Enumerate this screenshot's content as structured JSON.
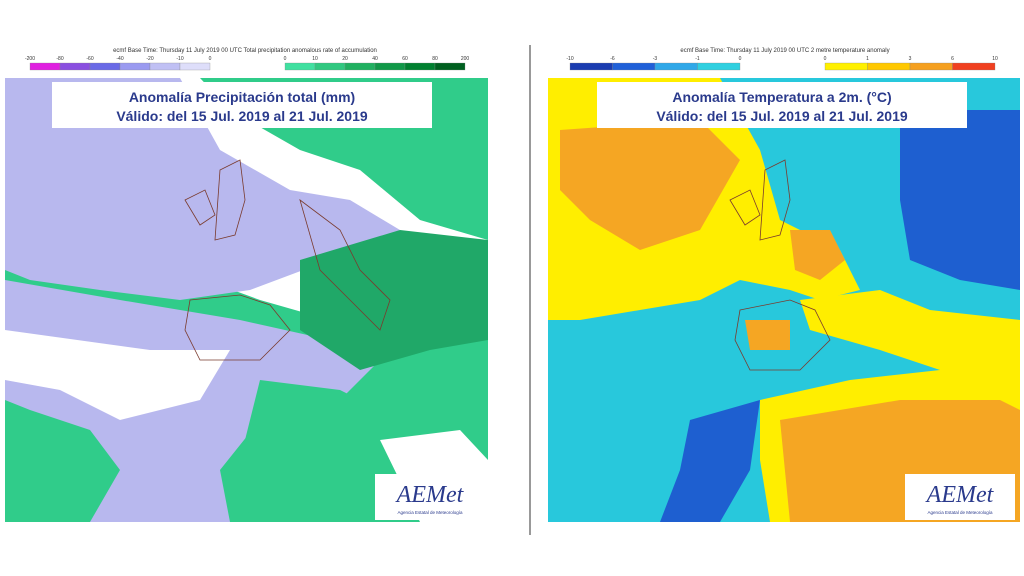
{
  "left": {
    "header": "ecmf Base Time: Thursday 11 July 2019 00 UTC Total precipitation anomalous rate of accumulation",
    "title": "Anomalía Precipitación total (mm)",
    "subtitle": "Válido: del 15 Jul. 2019 al 21 Jul. 2019",
    "legend_negative": {
      "labels": [
        "-200",
        "-80",
        "-60",
        "-40",
        "-20",
        "-10",
        "0"
      ],
      "colors": [
        "#e020e0",
        "#8a4fe0",
        "#6a6ae6",
        "#9a9af0",
        "#c0c0f4",
        "#dedefa"
      ]
    },
    "legend_positive": {
      "labels": [
        "0",
        "10",
        "20",
        "40",
        "60",
        "80",
        "200"
      ],
      "colors": [
        "#40e0a0",
        "#30c880",
        "#20b060",
        "#109848",
        "#008030",
        "#006020"
      ]
    },
    "logo": "AEMet",
    "logo_subtitle": "Agencia Estatal de Meteorología"
  },
  "right": {
    "header": "ecmf Base Time: Thursday 11 July 2019 00 UTC 2 metre temperature anomaly",
    "title": "Anomalía Temperatura a 2m. (°C)",
    "subtitle": "Válido: del 15 Jul. 2019 al 21 Jul. 2019",
    "legend_negative": {
      "labels": [
        "-10",
        "-6",
        "-3",
        "-1",
        "0"
      ],
      "colors": [
        "#1a3cb0",
        "#2060d8",
        "#30a8e8",
        "#30d0e0"
      ]
    },
    "legend_positive": {
      "labels": [
        "0",
        "1",
        "3",
        "6",
        "10"
      ],
      "colors": [
        "#fff000",
        "#ffc800",
        "#f5a020",
        "#f04020"
      ]
    },
    "logo": "AEMet",
    "logo_subtitle": "Agencia Estatal de Meteorología"
  }
}
